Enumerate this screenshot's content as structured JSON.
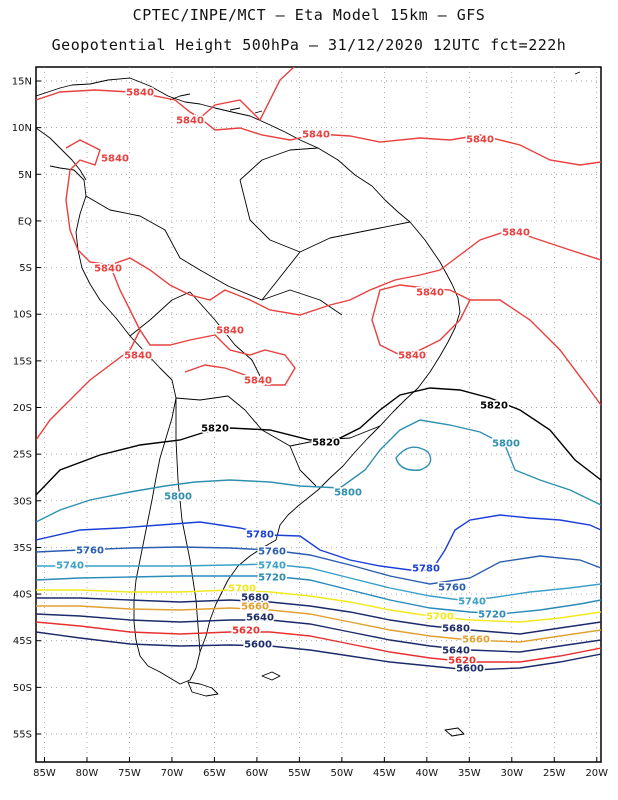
{
  "header": {
    "line1": "CPTEC/INPE/MCT –  Eta Model 15km – GFS",
    "line2": "Geopotential Height 500hPa – 31/12/2020 12UTC fct=222h"
  },
  "axes": {
    "lat_labels": [
      "15N",
      "10N",
      "5N",
      "EQ",
      "5S",
      "10S",
      "15S",
      "20S",
      "25S",
      "30S",
      "35S",
      "40S",
      "45S",
      "50S",
      "55S"
    ],
    "lon_labels": [
      "85W",
      "80W",
      "75W",
      "70W",
      "65W",
      "60W",
      "55W",
      "50W",
      "45W",
      "40W",
      "35W",
      "30W",
      "25W",
      "20W"
    ],
    "lat_range": [
      -58,
      16.5
    ],
    "lon_range": [
      -86,
      -19.5
    ],
    "grid": "dotted"
  },
  "colors": {
    "5840": "#e8403e",
    "5820": "#000000",
    "5800": "#2e8fb0",
    "5780": "#1a3fd8",
    "5760": "#2a5db0",
    "5740": "#3aa0c8",
    "5720": "#2a8ab8",
    "5700": "#f2e81a",
    "5680": "#1a2a6a",
    "5660": "#e0a030",
    "5640": "#1a2a6a",
    "5620": "#e83030",
    "5600": "#1a2a6a",
    "coast": "#000000",
    "grid": "#888888"
  },
  "contours": [
    {
      "value": 5840,
      "labels": [
        "5840",
        "5840",
        "5840",
        "5840",
        "5840",
        "5840",
        "5840",
        "5840",
        "5840",
        "5840",
        "5840",
        "5840",
        "5840"
      ]
    },
    {
      "value": 5820,
      "labels": [
        "5820",
        "5820",
        "5820"
      ]
    },
    {
      "value": 5800,
      "labels": [
        "5800",
        "5800",
        "5800"
      ]
    },
    {
      "value": 5780,
      "labels": [
        "5780",
        "5780"
      ]
    },
    {
      "value": 5760,
      "labels": [
        "5760",
        "5760",
        "5760"
      ]
    },
    {
      "value": 5740,
      "labels": [
        "5740",
        "5740",
        "5740"
      ]
    },
    {
      "value": 5720,
      "labels": [
        "5720",
        "5720"
      ]
    },
    {
      "value": 5700,
      "labels": [
        "5700",
        "5700"
      ]
    },
    {
      "value": 5680,
      "labels": [
        "5680",
        "5680"
      ]
    },
    {
      "value": 5660,
      "labels": [
        "5660",
        "5660"
      ]
    },
    {
      "value": 5640,
      "labels": [
        "5640",
        "5640"
      ]
    },
    {
      "value": 5620,
      "labels": [
        "5620",
        "5620"
      ]
    },
    {
      "value": 5600,
      "labels": [
        "5600",
        "5600"
      ]
    }
  ]
}
